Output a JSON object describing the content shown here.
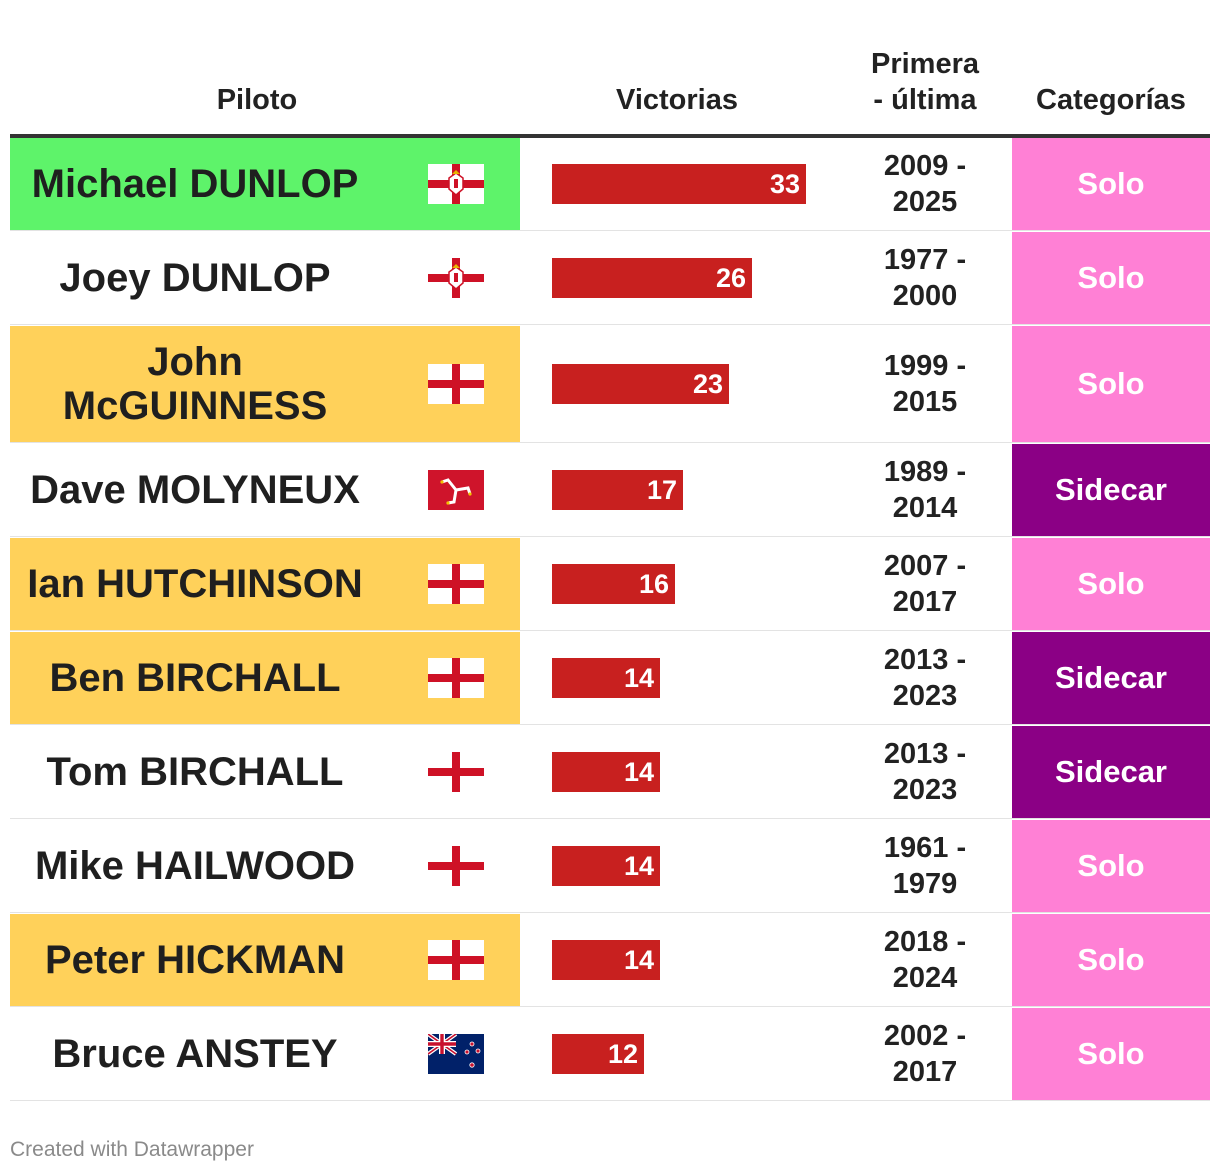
{
  "header": {
    "piloto": "Piloto",
    "victorias": "Victorias",
    "periodo": "Primera\n- última",
    "categorias": "Categorías"
  },
  "chart_data": {
    "type": "table",
    "columns": [
      "Piloto",
      "Victorias",
      "Primera - última",
      "Categorías"
    ],
    "max_value": 33,
    "rows": [
      {
        "name": "Michael DUNLOP",
        "flag": "northern-ireland-flag",
        "wins": 33,
        "period": "2009 -\n2025",
        "category": "Solo",
        "highlight": "#5ef36a",
        "cat_color": "#ff80d5"
      },
      {
        "name": "Joey DUNLOP",
        "flag": "northern-ireland-flag",
        "wins": 26,
        "period": "1977 -\n2000",
        "category": "Solo",
        "highlight": "",
        "cat_color": "#ff80d5"
      },
      {
        "name": "John McGUINNESS",
        "flag": "england-flag",
        "wins": 23,
        "period": "1999 -\n2015",
        "category": "Solo",
        "highlight": "#ffd15a",
        "cat_color": "#ff80d5"
      },
      {
        "name": "Dave MOLYNEUX",
        "flag": "isle-of-man-flag",
        "wins": 17,
        "period": "1989 -\n2014",
        "category": "Sidecar",
        "highlight": "",
        "cat_color": "#8b0085"
      },
      {
        "name": "Ian HUTCHINSON",
        "flag": "england-flag",
        "wins": 16,
        "period": "2007 -\n2017",
        "category": "Solo",
        "highlight": "#ffd15a",
        "cat_color": "#ff80d5"
      },
      {
        "name": "Ben BIRCHALL",
        "flag": "england-flag",
        "wins": 14,
        "period": "2013 -\n2023",
        "category": "Sidecar",
        "highlight": "#ffd15a",
        "cat_color": "#8b0085"
      },
      {
        "name": "Tom BIRCHALL",
        "flag": "england-flag",
        "wins": 14,
        "period": "2013 -\n2023",
        "category": "Sidecar",
        "highlight": "",
        "cat_color": "#8b0085"
      },
      {
        "name": "Mike HAILWOOD",
        "flag": "england-flag",
        "wins": 14,
        "period": "1961 -\n1979",
        "category": "Solo",
        "highlight": "",
        "cat_color": "#ff80d5"
      },
      {
        "name": "Peter HICKMAN",
        "flag": "england-flag",
        "wins": 14,
        "period": "2018 -\n2024",
        "category": "Solo",
        "highlight": "#ffd15a",
        "cat_color": "#ff80d5"
      },
      {
        "name": "Bruce ANSTEY",
        "flag": "new-zealand-flag",
        "wins": 12,
        "period": "2002 -\n2017",
        "category": "Solo",
        "highlight": "",
        "cat_color": "#ff80d5"
      }
    ]
  },
  "footer": {
    "credit": "Created with Datawrapper"
  }
}
